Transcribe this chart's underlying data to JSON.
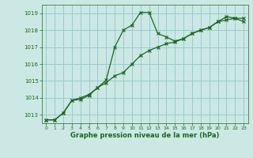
{
  "title": "Graphe pression niveau de la mer (hPa)",
  "background_color": "#cce8e4",
  "grid_color": "#99cccc",
  "line_color": "#1a6620",
  "xlim": [
    -0.5,
    23.5
  ],
  "ylim": [
    1012.5,
    1019.5
  ],
  "yticks": [
    1013,
    1014,
    1015,
    1016,
    1017,
    1018,
    1019
  ],
  "xticks": [
    0,
    1,
    2,
    3,
    4,
    5,
    6,
    7,
    8,
    9,
    10,
    11,
    12,
    13,
    14,
    15,
    16,
    17,
    18,
    19,
    20,
    21,
    22,
    23
  ],
  "series1": [
    1012.7,
    1012.7,
    1013.1,
    1013.85,
    1013.9,
    1014.15,
    1014.6,
    1015.05,
    1017.0,
    1018.0,
    1018.3,
    1019.05,
    1019.05,
    1017.8,
    1017.6,
    1017.35,
    1017.5,
    1017.8,
    1018.0,
    1018.15,
    1018.5,
    1018.8,
    1018.7,
    1018.7
  ],
  "series2": [
    1012.7,
    1012.7,
    1013.1,
    1013.85,
    1014.0,
    1014.2,
    1014.6,
    1014.9,
    1015.3,
    1015.5,
    1016.0,
    1016.5,
    1016.8,
    1017.0,
    1017.2,
    1017.3,
    1017.5,
    1017.8,
    1018.0,
    1018.15,
    1018.5,
    1018.6,
    1018.7,
    1018.5
  ]
}
